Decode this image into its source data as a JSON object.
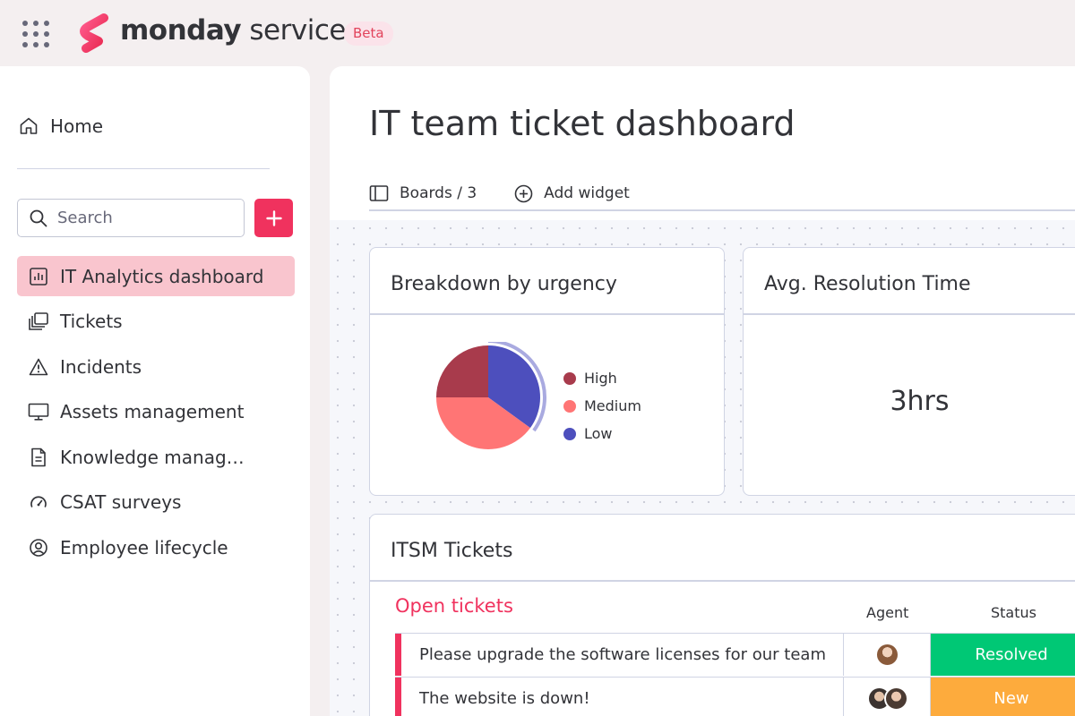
{
  "app": {
    "brand_bold": "monday",
    "brand_light": "service",
    "badge": "Beta"
  },
  "sidebar": {
    "home_label": "Home",
    "search_placeholder": "Search",
    "items": [
      {
        "label": "IT Analytics dashboard",
        "icon": "chart-icon",
        "active": true
      },
      {
        "label": "Tickets",
        "icon": "stack-icon"
      },
      {
        "label": "Incidents",
        "icon": "warning-icon"
      },
      {
        "label": "Assets management",
        "icon": "monitor-icon"
      },
      {
        "label": "Knowledge manag…",
        "icon": "document-icon"
      },
      {
        "label": "CSAT surveys",
        "icon": "gauge-icon"
      },
      {
        "label": "Employee lifecycle",
        "icon": "user-circle-icon"
      }
    ]
  },
  "main": {
    "title": "IT team ticket dashboard",
    "toolbar": {
      "boards_label": "Boards / 3",
      "add_widget_label": "Add widget"
    },
    "widgets": {
      "urgency": {
        "title": "Breakdown by urgency",
        "chart_data": {
          "type": "pie",
          "series": [
            {
              "name": "High",
              "value": 25,
              "color": "#a83b4c"
            },
            {
              "name": "Medium",
              "value": 40,
              "color": "#ff7575"
            },
            {
              "name": "Low",
              "value": 35,
              "color": "#4d4fbd"
            }
          ]
        }
      },
      "resolution": {
        "title": "Avg. Resolution Time",
        "value": "3hrs"
      },
      "tickets": {
        "title": "ITSM Tickets",
        "group_title": "Open tickets",
        "columns": {
          "agent": "Agent",
          "status": "Status"
        },
        "rows": [
          {
            "name": "Please upgrade the software licenses for our team",
            "status": "Resolved",
            "status_color": "#00c875",
            "agents": 1
          },
          {
            "name": "The website is down!",
            "status": "New",
            "status_color": "#fdab3d",
            "agents": 2
          }
        ]
      }
    }
  },
  "colors": {
    "accent": "#f0325e",
    "active_nav": "#f9c5ce"
  }
}
